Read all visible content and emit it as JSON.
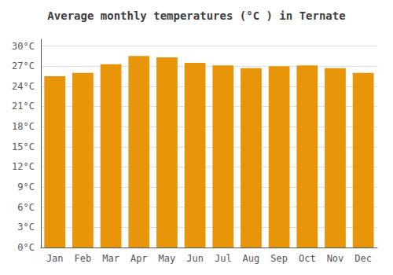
{
  "chart_data": {
    "type": "bar",
    "title": "Average monthly temperatures (°C ) in Ternate",
    "categories": [
      "Jan",
      "Feb",
      "Mar",
      "Apr",
      "May",
      "Jun",
      "Jul",
      "Aug",
      "Sep",
      "Oct",
      "Nov",
      "Dec"
    ],
    "values": [
      25.5,
      26.0,
      27.3,
      28.5,
      28.3,
      27.5,
      27.1,
      26.7,
      27.0,
      27.1,
      26.7,
      26.0
    ],
    "color": "#E8950A",
    "ylim": [
      0,
      31
    ],
    "yticks": [
      {
        "value": 0,
        "label": "0°C"
      },
      {
        "value": 3,
        "label": "3°C"
      },
      {
        "value": 6,
        "label": "6°C"
      },
      {
        "value": 9,
        "label": "9°C"
      },
      {
        "value": 12,
        "label": "12°C"
      },
      {
        "value": 15,
        "label": "15°C"
      },
      {
        "value": 18,
        "label": "18°C"
      },
      {
        "value": 21,
        "label": "21°C"
      },
      {
        "value": 24,
        "label": "24°C"
      },
      {
        "value": 27,
        "label": "27°C"
      },
      {
        "value": 30,
        "label": "30°C"
      }
    ],
    "grid": true
  }
}
